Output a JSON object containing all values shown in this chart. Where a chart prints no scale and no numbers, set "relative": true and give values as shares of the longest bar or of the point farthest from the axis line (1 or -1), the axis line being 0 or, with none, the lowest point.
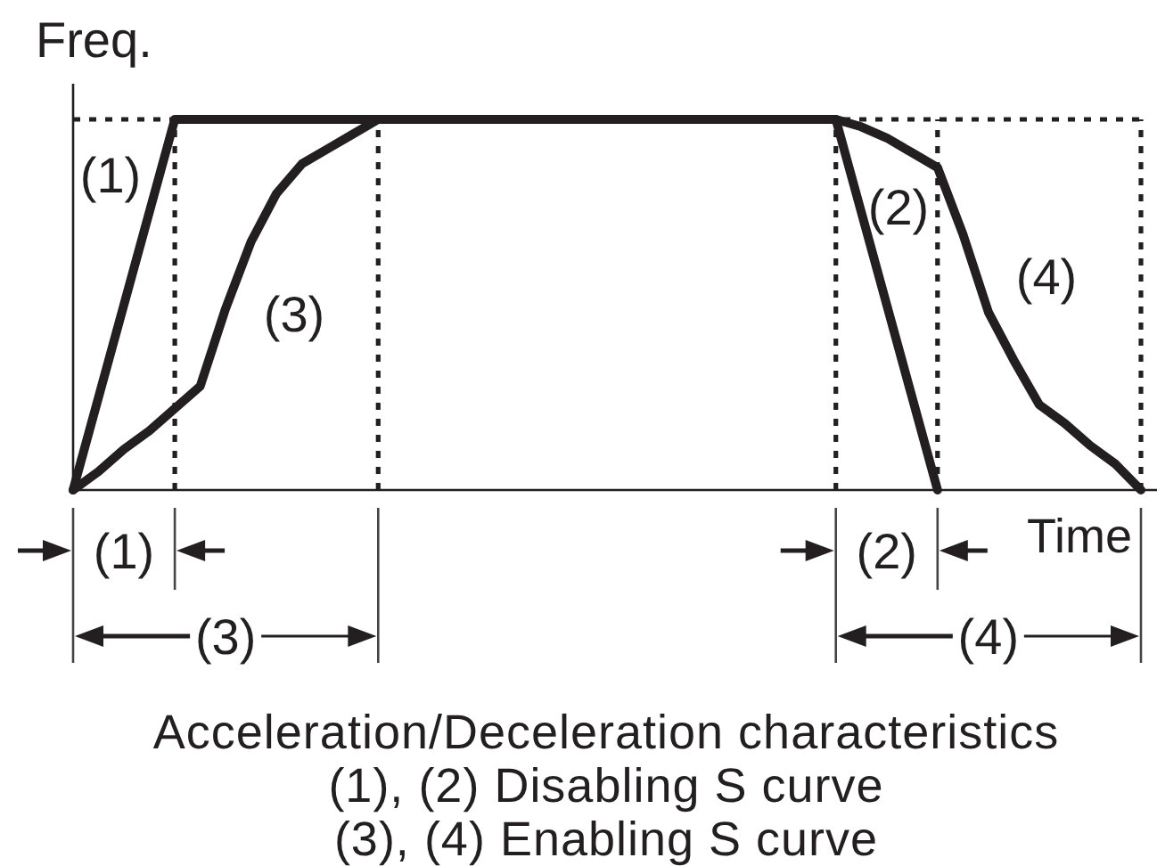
{
  "chart_data": {
    "type": "line",
    "relative": true,
    "xlabel": "Time",
    "ylabel": "Freq.",
    "grid": true,
    "categories": [
      null,
      null,
      null,
      null,
      null,
      null,
      null,
      null,
      null,
      null,
      null,
      null,
      null,
      null,
      null,
      null,
      null,
      null,
      null,
      null,
      null,
      null,
      null,
      null,
      null,
      null,
      null,
      null,
      null,
      null,
      null,
      null,
      null,
      null,
      null,
      null,
      null,
      null,
      null,
      null,
      null,
      null,
      null
    ],
    "series": [
      {
        "color": "#231f20",
        "values": [
          0,
          0.25,
          0.5,
          0.75,
          1,
          1,
          1,
          1,
          1,
          1,
          1,
          1,
          1,
          1,
          1,
          1,
          1,
          1,
          1,
          1,
          1,
          1,
          1,
          1,
          1,
          1,
          1,
          1,
          1,
          1,
          1,
          0.75,
          0.5,
          0.25,
          0,
          null,
          null,
          null,
          null,
          null,
          null,
          null,
          null
        ]
      },
      {
        "name": "(3)",
        "color": "#231f20",
        "values": [
          0,
          0.05,
          0.11,
          0.16,
          0.22,
          0.28,
          0.49,
          0.67,
          0.8,
          0.88,
          0.92,
          0.96,
          1,
          null,
          null,
          null,
          null,
          null,
          null,
          null,
          null,
          null,
          null,
          null,
          null,
          null,
          null,
          null,
          null,
          null,
          null,
          null,
          null,
          null,
          null,
          null,
          null,
          null,
          null,
          null,
          null,
          null,
          null
        ]
      },
      {
        "name": "(4)",
        "color": "#231f20",
        "values": [
          null,
          null,
          null,
          null,
          null,
          null,
          null,
          null,
          null,
          null,
          null,
          null,
          null,
          null,
          null,
          null,
          null,
          null,
          null,
          null,
          null,
          null,
          null,
          null,
          null,
          null,
          null,
          null,
          null,
          null,
          1,
          0.98,
          0.95,
          0.91,
          0.87,
          0.69,
          0.48,
          0.35,
          0.23,
          0.18,
          0.12,
          0.07,
          0
        ]
      }
    ],
    "annotations": [
      "(1)",
      "(2)",
      "(1)",
      "(2)",
      "(3)",
      "(4)",
      "Acceleration/Deceleration characteristics",
      "(1), (2) Disabling S curve",
      "(3), (4) Enabling S curve"
    ]
  }
}
